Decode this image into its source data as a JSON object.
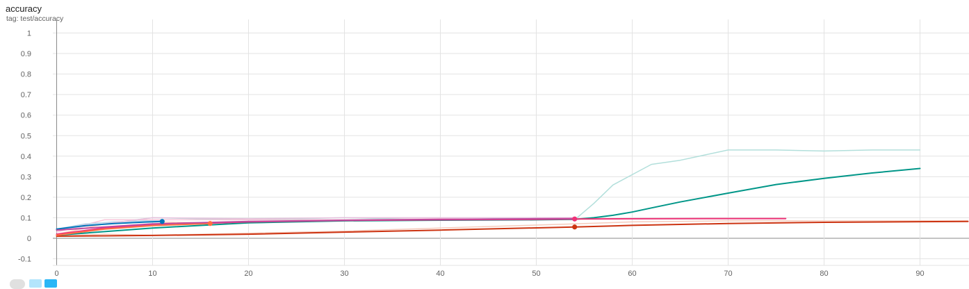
{
  "header": {
    "title": "accuracy",
    "tag": "tag: test/accuracy"
  },
  "chart_data": {
    "type": "line",
    "title": "accuracy",
    "subtitle": "tag: test/accuracy",
    "xlabel": "",
    "ylabel": "",
    "xlim": [
      -2,
      95
    ],
    "ylim": [
      -0.13,
      1.02
    ],
    "xticks": [
      0,
      10,
      20,
      30,
      40,
      50,
      60,
      70,
      80,
      90
    ],
    "yticks": [
      -0.1,
      0,
      0.1,
      0.2,
      0.3,
      0.4,
      0.5,
      0.6,
      0.7,
      0.8,
      0.9,
      1
    ],
    "ytick_labels": [
      "-0.1",
      "0",
      "0.1",
      "0.2",
      "0.3",
      "0.4",
      "0.5",
      "0.6",
      "0.7",
      "0.8",
      "0.9",
      "1"
    ],
    "grid": true,
    "legend": "none",
    "series": [
      {
        "color": "#009688",
        "raw_color": "#b2dfdb",
        "x": [
          0,
          10,
          20,
          30,
          40,
          50,
          54,
          56,
          58,
          60,
          62,
          65,
          70,
          75,
          80,
          85,
          90
        ],
        "raw": [
          0.04,
          0.1,
          0.09,
          0.1,
          0.09,
          0.1,
          0.09,
          0.17,
          0.26,
          0.31,
          0.36,
          0.38,
          0.43,
          0.43,
          0.425,
          0.43,
          0.43
        ],
        "smoothed": [
          0.015,
          0.05,
          0.075,
          0.085,
          0.088,
          0.09,
          0.092,
          0.1,
          0.112,
          0.128,
          0.148,
          0.177,
          0.22,
          0.262,
          0.292,
          0.318,
          0.34
        ]
      },
      {
        "color": "#cc3311",
        "raw_color": "#f5cbbd",
        "x": [
          0,
          5,
          10,
          20,
          30,
          40,
          54,
          60,
          70,
          80,
          90,
          95
        ],
        "raw": [
          0.01,
          0.02,
          0.015,
          0.025,
          0.035,
          0.05,
          0.07,
          0.08,
          0.085,
          0.085,
          0.085,
          0.085
        ],
        "smoothed": [
          0.01,
          0.012,
          0.014,
          0.02,
          0.03,
          0.04,
          0.055,
          0.063,
          0.072,
          0.078,
          0.081,
          0.082
        ],
        "marker_x": 54
      },
      {
        "color": "#ee3377",
        "raw_color": "#f8c4d8",
        "x": [
          0,
          5,
          10,
          20,
          30,
          40,
          50,
          54,
          60,
          70,
          76
        ],
        "raw": [
          0.03,
          0.09,
          0.09,
          0.09,
          0.09,
          0.095,
          0.09,
          0.095,
          0.095,
          0.095,
          0.095
        ],
        "smoothed": [
          0.02,
          0.05,
          0.065,
          0.08,
          0.087,
          0.09,
          0.092,
          0.094,
          0.095,
          0.096,
          0.096
        ],
        "marker_x": 54
      },
      {
        "color": "#ff7043",
        "raw_color": "#ffd0bd",
        "x": [
          0,
          5,
          10,
          16
        ],
        "raw": [
          0.02,
          0.07,
          0.08,
          0.075
        ],
        "smoothed": [
          0.015,
          0.045,
          0.062,
          0.072
        ],
        "marker_x": 16
      },
      {
        "color": "#0077bb",
        "raw_color": "#b8d4e8",
        "x": [
          0,
          3,
          6,
          9,
          11
        ],
        "raw": [
          0.045,
          0.07,
          0.08,
          0.085,
          0.085
        ],
        "smoothed": [
          0.045,
          0.062,
          0.072,
          0.079,
          0.082
        ],
        "marker_x": 11
      },
      {
        "color": "#c04a9e",
        "raw_color": "#e6c0dc",
        "x": [
          0,
          10,
          20,
          30,
          40,
          50,
          54
        ],
        "raw": [
          0.04,
          0.1,
          0.095,
          0.1,
          0.1,
          0.1,
          0.1
        ],
        "smoothed": [
          0.04,
          0.07,
          0.082,
          0.088,
          0.092,
          0.095,
          0.096
        ]
      }
    ]
  }
}
